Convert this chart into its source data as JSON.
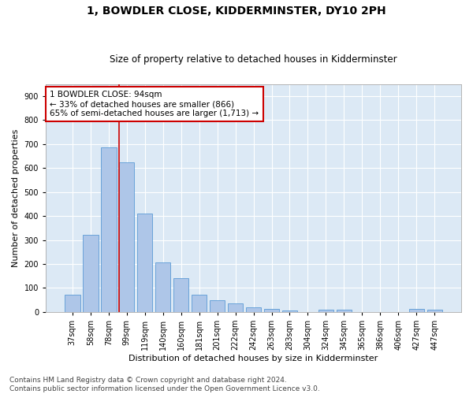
{
  "title": "1, BOWDLER CLOSE, KIDDERMINSTER, DY10 2PH",
  "subtitle": "Size of property relative to detached houses in Kidderminster",
  "xlabel": "Distribution of detached houses by size in Kidderminster",
  "ylabel": "Number of detached properties",
  "categories": [
    "37sqm",
    "58sqm",
    "78sqm",
    "99sqm",
    "119sqm",
    "140sqm",
    "160sqm",
    "181sqm",
    "201sqm",
    "222sqm",
    "242sqm",
    "263sqm",
    "283sqm",
    "304sqm",
    "324sqm",
    "345sqm",
    "365sqm",
    "386sqm",
    "406sqm",
    "427sqm",
    "447sqm"
  ],
  "values": [
    72,
    322,
    688,
    623,
    410,
    207,
    140,
    72,
    48,
    35,
    20,
    12,
    5,
    0,
    8,
    8,
    0,
    0,
    0,
    12,
    10
  ],
  "bar_color": "#aec6e8",
  "bar_edge_color": "#5b9bd5",
  "vline_index": 3,
  "vline_color": "#cc0000",
  "annotation_text": "1 BOWDLER CLOSE: 94sqm\n← 33% of detached houses are smaller (866)\n65% of semi-detached houses are larger (1,713) →",
  "annotation_box_color": "#ffffff",
  "annotation_box_edge": "#cc0000",
  "plot_bg_color": "#dce9f5",
  "fig_bg_color": "#ffffff",
  "ylim": [
    0,
    950
  ],
  "yticks": [
    0,
    100,
    200,
    300,
    400,
    500,
    600,
    700,
    800,
    900
  ],
  "footer_line1": "Contains HM Land Registry data © Crown copyright and database right 2024.",
  "footer_line2": "Contains public sector information licensed under the Open Government Licence v3.0.",
  "title_fontsize": 10,
  "subtitle_fontsize": 8.5,
  "xlabel_fontsize": 8,
  "ylabel_fontsize": 8,
  "tick_fontsize": 7,
  "annotation_fontsize": 7.5,
  "footer_fontsize": 6.5
}
